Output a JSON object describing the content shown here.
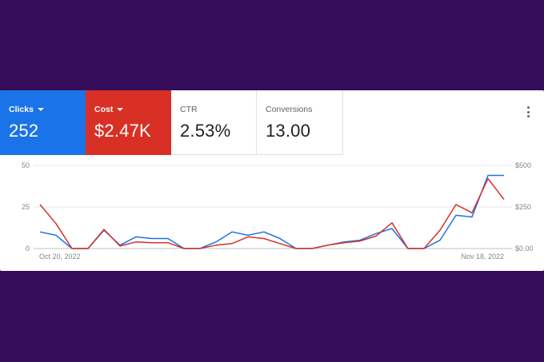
{
  "metrics": [
    {
      "label": "Clicks",
      "value": "252",
      "has_dropdown": true,
      "color": "#1a73e8"
    },
    {
      "label": "Cost",
      "value": "$2.47K",
      "has_dropdown": true,
      "color": "#d93025"
    },
    {
      "label": "CTR",
      "value": "2.53%",
      "has_dropdown": false
    },
    {
      "label": "Conversions",
      "value": "13.00",
      "has_dropdown": false
    }
  ],
  "menu_icon": "more-vert-icon",
  "chart_data": {
    "type": "line",
    "x_start_label": "Oct 20, 2022",
    "x_end_label": "Nov 18, 2022",
    "left_axis": {
      "ticks": [
        "0",
        "25",
        "50"
      ],
      "ylim": [
        0,
        50
      ]
    },
    "right_axis": {
      "ticks": [
        "$0.00",
        "$250",
        "$500"
      ],
      "ylim": [
        0,
        500
      ]
    },
    "grid": true,
    "series": [
      {
        "color": "#1a73e8",
        "axis": "left",
        "values": [
          10,
          8,
          0,
          0,
          11,
          2,
          7,
          6,
          6,
          0,
          0,
          4,
          10,
          8,
          10,
          6,
          0,
          0,
          2,
          4,
          5,
          9,
          12,
          0,
          0,
          5,
          20,
          19,
          44,
          44
        ]
      },
      {
        "color": "#d93025",
        "axis": "right",
        "values": [
          265,
          150,
          0,
          0,
          115,
          15,
          40,
          35,
          35,
          0,
          0,
          20,
          30,
          70,
          60,
          30,
          0,
          0,
          20,
          35,
          45,
          75,
          155,
          0,
          0,
          110,
          265,
          215,
          420,
          295
        ]
      }
    ]
  }
}
